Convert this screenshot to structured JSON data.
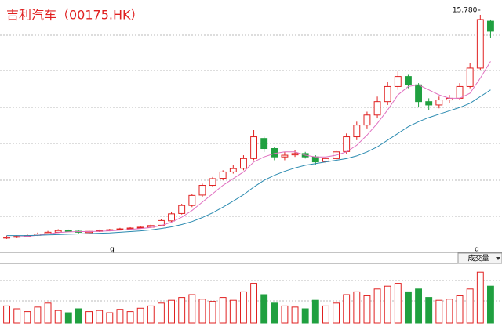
{
  "chart_data": {
    "type": "candlestick",
    "title": "吉利汽车（00175.HK）",
    "high_label": "15.780",
    "date_markers": [
      "q",
      "q"
    ],
    "volume_label": "成交量",
    "ylim": [
      1.6,
      16.2
    ],
    "vlim": [
      0,
      100
    ],
    "up_color": "#e02020",
    "down_color": "#20a040",
    "open": [
      2.45,
      2.5,
      2.56,
      2.62,
      2.72,
      2.8,
      2.92,
      2.86,
      2.78,
      2.86,
      2.9,
      2.96,
      3.0,
      3.06,
      3.1,
      3.22,
      3.48,
      3.92,
      4.4,
      5.02,
      5.6,
      6.02,
      6.4,
      6.62,
      7.2,
      8.4,
      7.8,
      7.3,
      7.42,
      7.5,
      7.3,
      7.02,
      7.2,
      7.62,
      8.5,
      9.2,
      9.8,
      10.6,
      11.5,
      12.1,
      11.6,
      10.6,
      10.4,
      10.7,
      10.8,
      11.5,
      12.6,
      15.4
    ],
    "high": [
      2.6,
      2.62,
      2.68,
      2.78,
      2.88,
      2.98,
      2.96,
      2.9,
      2.92,
      2.96,
      3.0,
      3.06,
      3.1,
      3.16,
      3.26,
      3.6,
      4.0,
      4.5,
      5.1,
      5.7,
      6.1,
      6.5,
      6.8,
      7.4,
      8.9,
      8.5,
      7.9,
      7.6,
      7.7,
      7.6,
      7.4,
      7.3,
      7.7,
      8.7,
      9.4,
      10.0,
      10.9,
      11.8,
      12.4,
      12.2,
      11.7,
      10.8,
      10.9,
      11.0,
      11.7,
      12.9,
      15.78,
      15.5
    ],
    "low": [
      2.4,
      2.45,
      2.5,
      2.58,
      2.68,
      2.76,
      2.82,
      2.74,
      2.74,
      2.82,
      2.86,
      2.92,
      2.96,
      3.0,
      3.06,
      3.18,
      3.42,
      3.86,
      4.3,
      4.9,
      5.5,
      5.9,
      6.3,
      6.5,
      7.1,
      7.6,
      7.1,
      7.1,
      7.3,
      7.2,
      6.8,
      6.9,
      7.1,
      7.5,
      8.3,
      9.0,
      9.6,
      10.4,
      11.3,
      11.4,
      10.3,
      10.1,
      10.2,
      10.5,
      10.7,
      11.4,
      12.5,
      14.4
    ],
    "close": [
      2.5,
      2.55,
      2.6,
      2.7,
      2.8,
      2.9,
      2.85,
      2.8,
      2.85,
      2.9,
      2.95,
      3.0,
      3.05,
      3.1,
      3.2,
      3.5,
      3.9,
      4.4,
      5.0,
      5.6,
      6.0,
      6.4,
      6.6,
      7.2,
      8.5,
      7.8,
      7.3,
      7.4,
      7.5,
      7.3,
      7.0,
      7.2,
      7.6,
      8.5,
      9.2,
      9.8,
      10.6,
      11.5,
      12.1,
      11.6,
      10.6,
      10.4,
      10.7,
      10.8,
      11.5,
      12.6,
      15.5,
      14.8
    ],
    "volume": [
      30,
      25,
      20,
      28,
      35,
      22,
      18,
      25,
      20,
      22,
      18,
      24,
      20,
      26,
      30,
      35,
      40,
      45,
      50,
      42,
      38,
      45,
      40,
      55,
      70,
      50,
      35,
      30,
      28,
      25,
      40,
      30,
      35,
      50,
      55,
      48,
      60,
      65,
      70,
      55,
      60,
      45,
      40,
      42,
      48,
      60,
      90,
      65
    ],
    "averages": [
      {
        "color": "#e070c0",
        "values": [
          2.5,
          2.52,
          2.56,
          2.62,
          2.7,
          2.78,
          2.82,
          2.84,
          2.84,
          2.86,
          2.88,
          2.92,
          2.97,
          3.02,
          3.08,
          3.2,
          3.4,
          3.7,
          4.1,
          4.6,
          5.1,
          5.6,
          6.0,
          6.4,
          7.0,
          7.3,
          7.5,
          7.6,
          7.6,
          7.4,
          7.3,
          7.3,
          7.4,
          7.6,
          8.0,
          8.6,
          9.3,
          10.1,
          11.0,
          11.5,
          11.6,
          11.3,
          11.0,
          10.8,
          10.8,
          11.1,
          12.0,
          13.0
        ]
      },
      {
        "color": "#2a8ab0",
        "values": [
          2.6,
          2.6,
          2.6,
          2.62,
          2.64,
          2.66,
          2.68,
          2.7,
          2.72,
          2.74,
          2.76,
          2.8,
          2.84,
          2.88,
          2.94,
          3.02,
          3.12,
          3.26,
          3.44,
          3.68,
          3.96,
          4.3,
          4.66,
          5.04,
          5.5,
          5.9,
          6.2,
          6.44,
          6.64,
          6.8,
          6.9,
          7.0,
          7.1,
          7.2,
          7.36,
          7.6,
          7.9,
          8.3,
          8.7,
          9.1,
          9.4,
          9.65,
          9.85,
          10.05,
          10.25,
          10.5,
          10.9,
          11.3
        ]
      }
    ]
  }
}
